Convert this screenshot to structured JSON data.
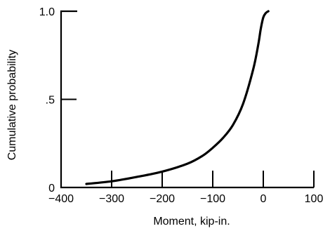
{
  "chart_data": {
    "type": "line",
    "title": "",
    "xlabel": "Moment, kip-in.",
    "ylabel": "Cumulative probability",
    "xlim": [
      -400,
      100
    ],
    "ylim": [
      0,
      1.0
    ],
    "grid": false,
    "legend": "none",
    "x_ticks": [
      {
        "value": -400,
        "label": "−400"
      },
      {
        "value": -300,
        "label": "−300"
      },
      {
        "value": -200,
        "label": "−200"
      },
      {
        "value": -100,
        "label": "−100"
      },
      {
        "value": 0,
        "label": "0"
      },
      {
        "value": 100,
        "label": "100"
      }
    ],
    "y_ticks": [
      {
        "value": 0,
        "label": "0"
      },
      {
        "value": 0.5,
        "label": ".5"
      },
      {
        "value": 1.0,
        "label": "1.0"
      }
    ],
    "series": [
      {
        "color": "#000000",
        "x": [
          -350,
          -300,
          -250,
          -200,
          -150,
          -120,
          -100,
          -80,
          -60,
          -40,
          -20,
          -10,
          -5,
          0,
          5,
          10
        ],
        "y": [
          0.02,
          0.035,
          0.06,
          0.09,
          0.135,
          0.18,
          0.225,
          0.28,
          0.355,
          0.475,
          0.67,
          0.81,
          0.9,
          0.965,
          0.99,
          1.0
        ]
      }
    ]
  }
}
